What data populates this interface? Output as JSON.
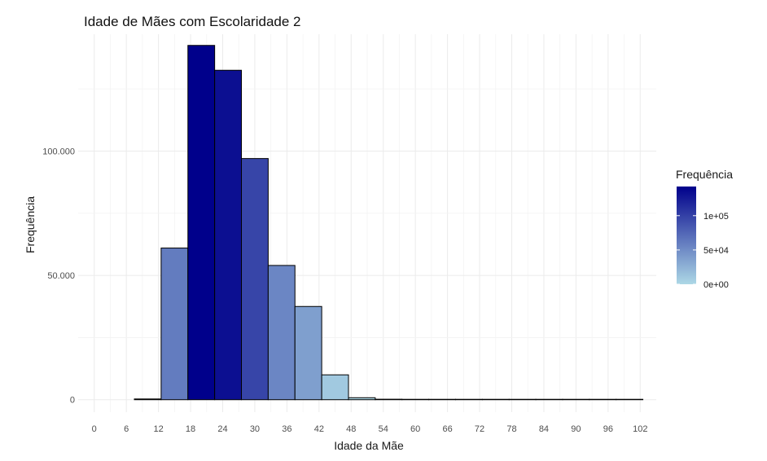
{
  "chart_data": {
    "type": "bar",
    "title": "Idade de Mães com Escolaridade 2",
    "xlabel": "Idade da Mãe",
    "ylabel": "Frequência",
    "xlim": [
      -3,
      105
    ],
    "ylim": [
      -5000,
      147000
    ],
    "grid": true,
    "x_ticks": [
      0,
      6,
      12,
      18,
      24,
      30,
      36,
      42,
      48,
      54,
      60,
      66,
      72,
      78,
      84,
      90,
      96,
      102
    ],
    "x_tick_labels": [
      "0",
      "6",
      "12",
      "18",
      "24",
      "30",
      "36",
      "42",
      "48",
      "54",
      "60",
      "66",
      "72",
      "78",
      "84",
      "90",
      "96",
      "102"
    ],
    "y_ticks": [
      0,
      50000,
      100000
    ],
    "y_tick_labels": [
      "0",
      "50.000",
      "100.000"
    ],
    "bins": [
      {
        "start": 7.5,
        "end": 12.5,
        "count": 300
      },
      {
        "start": 12.5,
        "end": 17.5,
        "count": 61000
      },
      {
        "start": 17.5,
        "end": 22.5,
        "count": 142500
      },
      {
        "start": 22.5,
        "end": 27.5,
        "count": 132500
      },
      {
        "start": 27.5,
        "end": 32.5,
        "count": 97000
      },
      {
        "start": 32.5,
        "end": 37.5,
        "count": 54000
      },
      {
        "start": 37.5,
        "end": 42.5,
        "count": 37500
      },
      {
        "start": 42.5,
        "end": 47.5,
        "count": 10000
      },
      {
        "start": 47.5,
        "end": 52.5,
        "count": 800
      },
      {
        "start": 52.5,
        "end": 57.5,
        "count": 200
      },
      {
        "start": 57.5,
        "end": 62.5,
        "count": 60
      },
      {
        "start": 62.5,
        "end": 67.5,
        "count": 30
      },
      {
        "start": 67.5,
        "end": 72.5,
        "count": 15
      },
      {
        "start": 72.5,
        "end": 77.5,
        "count": 10
      },
      {
        "start": 77.5,
        "end": 82.5,
        "count": 8
      },
      {
        "start": 82.5,
        "end": 87.5,
        "count": 6
      },
      {
        "start": 87.5,
        "end": 92.5,
        "count": 5
      },
      {
        "start": 92.5,
        "end": 97.5,
        "count": 4
      },
      {
        "start": 97.5,
        "end": 102.5,
        "count": 3
      }
    ],
    "legend": {
      "title": "Frequência",
      "placement": "right",
      "labels": [
        "1e+05",
        "5e+04",
        "0e+00"
      ],
      "values": [
        100000,
        50000,
        0
      ],
      "color_low": "#add8e6",
      "color_high": "#00008b",
      "range": [
        0,
        142500
      ]
    }
  }
}
